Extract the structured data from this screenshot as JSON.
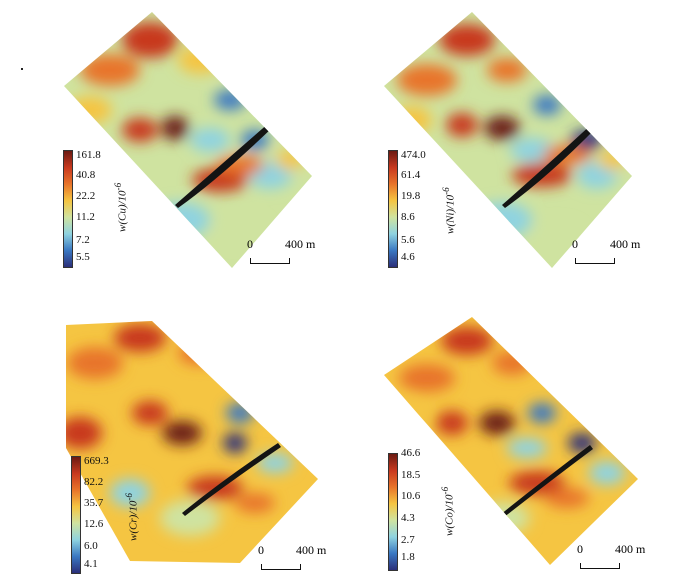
{
  "palette": {
    "very_high": "#6b1a12",
    "high": "#c8391f",
    "mid_high": "#e8742a",
    "mid": "#f5c542",
    "low_mid": "#cfe3a0",
    "low": "#8fd3e0",
    "very_low": "#3a78c2",
    "min": "#2b2f7a"
  },
  "panels": [
    {
      "colorbar_ticks": [
        "161.8",
        "40.8",
        "22.2",
        "11.2",
        "7.2",
        "5.5"
      ],
      "title": "w(Cu)/10",
      "exponent": "-6",
      "scale_zero": "0",
      "scale_label": "400 m"
    },
    {
      "colorbar_ticks": [
        "474.0",
        "61.4",
        "19.8",
        "8.6",
        "5.6",
        "4.6"
      ],
      "title": "w(Ni)/10",
      "exponent": "-6",
      "scale_zero": "0",
      "scale_label": "400 m"
    },
    {
      "colorbar_ticks": [
        "669.3",
        "82.2",
        "35.7",
        "12.6",
        "6.0",
        "4.1"
      ],
      "title": "w(Cr)/10",
      "exponent": "-6",
      "scale_zero": "0",
      "scale_label": "400 m"
    },
    {
      "colorbar_ticks": [
        "46.6",
        "18.5",
        "10.6",
        "4.3",
        "2.7",
        "1.8"
      ],
      "title": "w(Co)/10",
      "exponent": "-6",
      "scale_zero": "0",
      "scale_label": "400 m"
    }
  ]
}
